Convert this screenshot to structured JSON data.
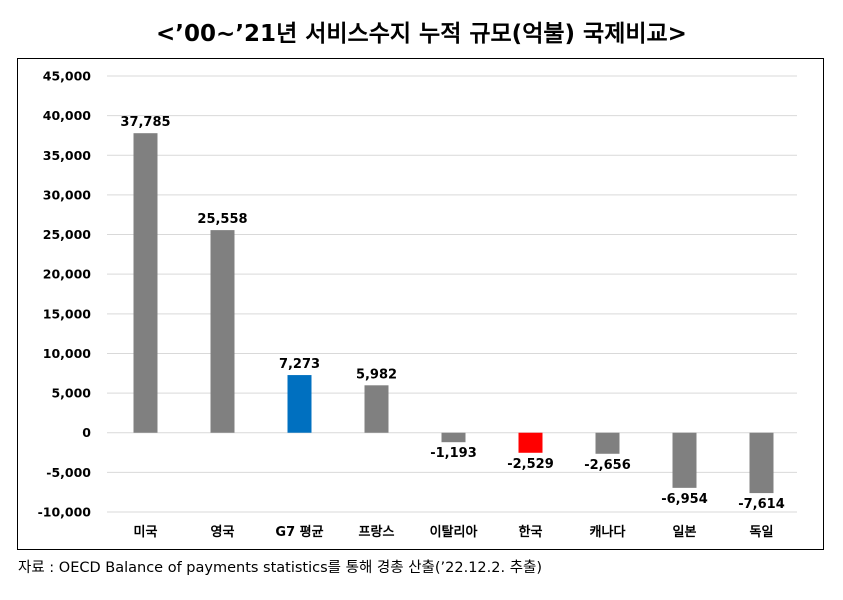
{
  "title": "<’00~’21년 서비스수지 누적 규모(억불) 국제비교>",
  "source": "자료 : OECD Balance of payments statistics를 통해 경총 산출(’22.12.2. 추출)",
  "chart_data": {
    "type": "bar",
    "title": "<’00~’21년 서비스수지 누적 규모(억불) 국제비교>",
    "xlabel": "",
    "ylabel": "",
    "ylim": [
      -10000,
      45000
    ],
    "yticks": [
      45000,
      40000,
      35000,
      30000,
      25000,
      20000,
      15000,
      10000,
      5000,
      0,
      -5000,
      -10000
    ],
    "ytick_labels": [
      "45,000",
      "40,000",
      "35,000",
      "30,000",
      "25,000",
      "20,000",
      "15,000",
      "10,000",
      "5,000",
      "0",
      "-5,000",
      "-10,000"
    ],
    "grid": true,
    "legend": "none",
    "categories": [
      "미국",
      "영국",
      "G7 평균",
      "프랑스",
      "이탈리아",
      "한국",
      "캐나다",
      "일본",
      "독일"
    ],
    "values": [
      37785,
      25558,
      7273,
      5982,
      -1193,
      -2529,
      -2656,
      -6954,
      -7614
    ],
    "value_labels": [
      "37,785",
      "25,558",
      "7,273",
      "5,982",
      "-1,193",
      "-2,529",
      "-2,656",
      "-6,954",
      "-7,614"
    ],
    "bar_colors": [
      "#808080",
      "#808080",
      "#0070C0",
      "#808080",
      "#808080",
      "#FF0000",
      "#808080",
      "#808080",
      "#808080"
    ]
  }
}
